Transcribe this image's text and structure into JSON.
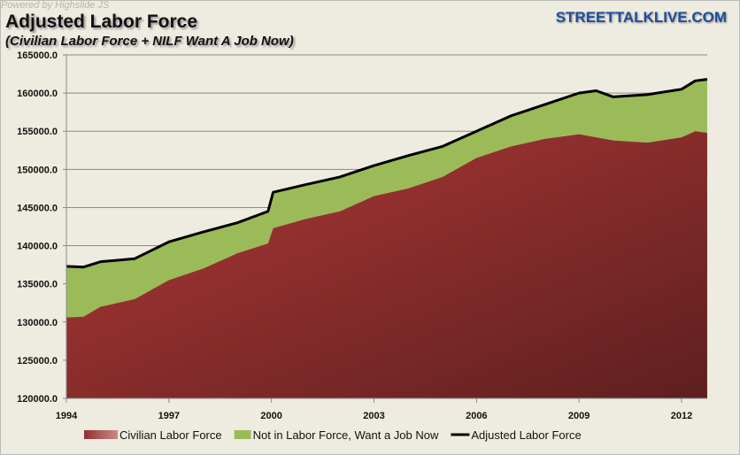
{
  "header": {
    "powered": "Powered by  Highslide JS",
    "brand": "STREETTALKLIVE.COM"
  },
  "chart_data": {
    "type": "area",
    "title": "Adjusted Labor Force",
    "subtitle": "(Civilian Labor Force + NILF Want A Job Now)",
    "xlabel": "",
    "ylabel": "",
    "xlim": [
      1994,
      2012.75
    ],
    "ylim": [
      120000,
      165000
    ],
    "yticks": [
      "120000.0",
      "125000.0",
      "130000.0",
      "135000.0",
      "140000.0",
      "145000.0",
      "150000.0",
      "155000.0",
      "160000.0",
      "165000.0"
    ],
    "xticks": [
      "1994",
      "1997",
      "2000",
      "2003",
      "2006",
      "2009",
      "2012"
    ],
    "x": [
      1994,
      1994.5,
      1995,
      1996,
      1997,
      1998,
      1999,
      1999.9,
      2000.05,
      2001,
      2002,
      2003,
      2004,
      2005,
      2006,
      2007,
      2008,
      2009,
      2009.5,
      2010,
      2011,
      2012,
      2012.4,
      2012.75
    ],
    "series": [
      {
        "name": "Civilian Labor Force",
        "color": "#8e2e2e",
        "values": [
          130600,
          130700,
          132000,
          133000,
          135500,
          137000,
          139000,
          140300,
          142300,
          143500,
          144500,
          146500,
          147500,
          149000,
          151500,
          153000,
          154000,
          154600,
          154200,
          153800,
          153500,
          154200,
          155000,
          154800
        ]
      },
      {
        "name": "Not in Labor Force, Want a Job Now",
        "color": "#9bbb59",
        "values": [
          6700,
          6500,
          5900,
          5300,
          5000,
          4800,
          4000,
          4200,
          4700,
          4500,
          4500,
          4000,
          4300,
          4000,
          3500,
          4000,
          4500,
          5400,
          6100,
          5700,
          6300,
          6300,
          6600,
          7000
        ]
      },
      {
        "name": "Adjusted Labor Force",
        "color": "#000000",
        "values": [
          137300,
          137200,
          137900,
          138300,
          140500,
          141800,
          143000,
          144500,
          147000,
          148000,
          149000,
          150500,
          151800,
          153000,
          155000,
          157000,
          158500,
          160000,
          160300,
          159500,
          159800,
          160500,
          161600,
          161800
        ]
      }
    ],
    "legend_position": "bottom"
  }
}
